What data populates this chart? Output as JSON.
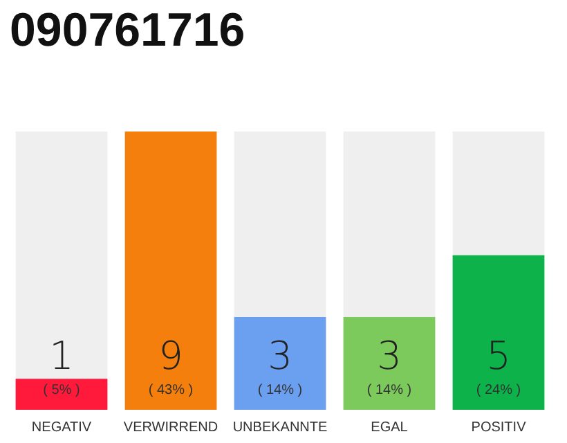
{
  "chart_data": {
    "type": "bar",
    "title": "090761716",
    "categories": [
      "NEGATIV",
      "VERWIRREND",
      "UNBEKANNTE",
      "EGAL",
      "POSITIV"
    ],
    "values": [
      1,
      9,
      3,
      3,
      5
    ],
    "colors": [
      "#ff1a3c",
      "#f47f0c",
      "#6aa0ef",
      "#7dca5c",
      "#0db34a"
    ],
    "value_labels": [
      "1\n( 5% )",
      "9\n( 43% )",
      "3\n( 14% )",
      "3\n( 14% )",
      "5\n( 24% )"
    ],
    "tick_labels": "x"
  }
}
